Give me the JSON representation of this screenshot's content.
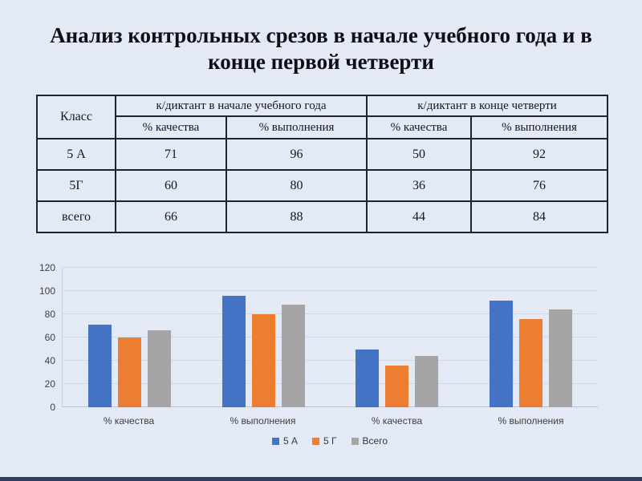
{
  "slide": {
    "title": "Анализ контрольных срезов в начале учебного года и в конце первой четверти",
    "background_color": "#E4EAF5",
    "footer_bar_color": "#2E3D5E"
  },
  "table": {
    "header": {
      "class_label": "Класс",
      "group1": "к/диктант в начале учебного года",
      "group2": "к/диктант в конце четверти",
      "sub1": "% качества",
      "sub2": "% выполнения",
      "sub3": "% качества",
      "sub4": "% выполнения"
    },
    "rows": [
      {
        "class": "5 А",
        "values": [
          "71",
          "96",
          "50",
          "92"
        ]
      },
      {
        "class": "5Г",
        "values": [
          "60",
          "80",
          "36",
          "76"
        ]
      },
      {
        "class": "всего",
        "values": [
          "66",
          "88",
          "44",
          "84"
        ]
      }
    ]
  },
  "chart_data": {
    "type": "bar",
    "title": "",
    "xlabel": "",
    "ylabel": "",
    "categories": [
      "% качества",
      "% выполнения",
      "% качества",
      "% выполнения"
    ],
    "series": [
      {
        "name": "5 А",
        "color": "#4472C4",
        "values": [
          71,
          96,
          50,
          92
        ]
      },
      {
        "name": "5 Г",
        "color": "#ED7D31",
        "values": [
          60,
          80,
          36,
          76
        ]
      },
      {
        "name": "Всего",
        "color": "#A5A5A5",
        "values": [
          66,
          88,
          44,
          84
        ]
      }
    ],
    "ylim": [
      0,
      120
    ],
    "ytick_step": 20,
    "grid": true,
    "legend_position": "bottom"
  }
}
